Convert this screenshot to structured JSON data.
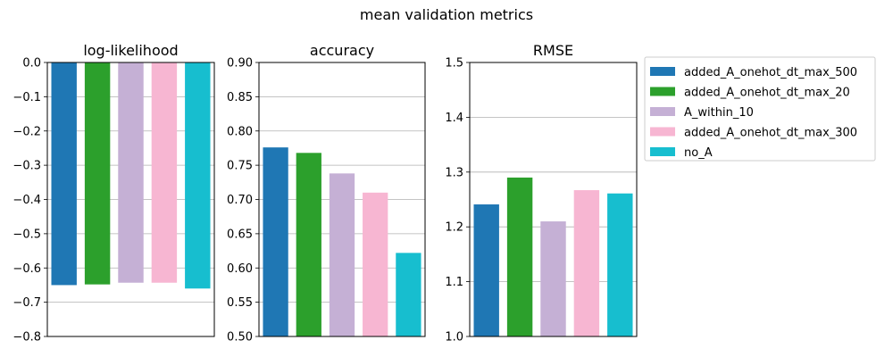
{
  "figure": {
    "title": "mean validation metrics"
  },
  "chart_data": [
    {
      "type": "bar",
      "title": "log-likelihood",
      "categories": [
        "added_A_onehot_dt_max_500",
        "added_A_onehot_dt_max_20",
        "A_within_10",
        "added_A_onehot_dt_max_300",
        "no_A"
      ],
      "values": [
        -0.65,
        -0.648,
        -0.643,
        -0.643,
        -0.66
      ],
      "ylim": [
        -0.8,
        0.0
      ],
      "yticks": [
        0.0,
        -0.1,
        -0.2,
        -0.3,
        -0.4,
        -0.5,
        -0.6,
        -0.7,
        -0.8
      ],
      "ytick_labels": [
        "0.0",
        "−0.1",
        "−0.2",
        "−0.3",
        "−0.4",
        "−0.5",
        "−0.6",
        "−0.7",
        "−0.8"
      ],
      "grid": true
    },
    {
      "type": "bar",
      "title": "accuracy",
      "categories": [
        "added_A_onehot_dt_max_500",
        "added_A_onehot_dt_max_20",
        "A_within_10",
        "added_A_onehot_dt_max_300",
        "no_A"
      ],
      "values": [
        0.776,
        0.768,
        0.738,
        0.71,
        0.622
      ],
      "ylim": [
        0.5,
        0.9
      ],
      "yticks": [
        0.5,
        0.55,
        0.6,
        0.65,
        0.7,
        0.75,
        0.8,
        0.85,
        0.9
      ],
      "ytick_labels": [
        "0.50",
        "0.55",
        "0.60",
        "0.65",
        "0.70",
        "0.75",
        "0.80",
        "0.85",
        "0.90"
      ],
      "grid": true
    },
    {
      "type": "bar",
      "title": "RMSE",
      "categories": [
        "added_A_onehot_dt_max_500",
        "added_A_onehot_dt_max_20",
        "A_within_10",
        "added_A_onehot_dt_max_300",
        "no_A"
      ],
      "values": [
        1.241,
        1.29,
        1.21,
        1.267,
        1.261
      ],
      "ylim": [
        1.0,
        1.5
      ],
      "yticks": [
        1.0,
        1.1,
        1.2,
        1.3,
        1.4,
        1.5
      ],
      "ytick_labels": [
        "1.0",
        "1.1",
        "1.2",
        "1.3",
        "1.4",
        "1.5"
      ],
      "grid": true
    }
  ],
  "legend": {
    "placement": "right",
    "entries": [
      {
        "label": "added_A_onehot_dt_max_500",
        "color": "#1f77b4"
      },
      {
        "label": "added_A_onehot_dt_max_20",
        "color": "#2ca02c"
      },
      {
        "label": "A_within_10",
        "color": "#c5b0d5"
      },
      {
        "label": "added_A_onehot_dt_max_300",
        "color": "#f7b6d2"
      },
      {
        "label": "no_A",
        "color": "#17becf"
      }
    ]
  }
}
